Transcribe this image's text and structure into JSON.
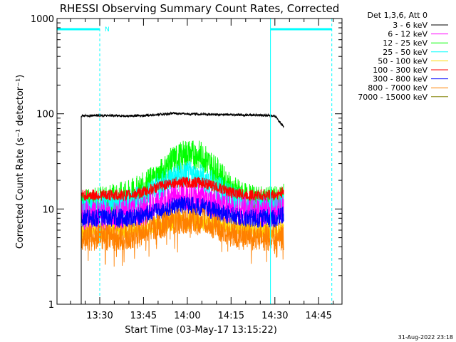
{
  "chart_data": {
    "type": "line",
    "title": "RHESSI Observing Summary Count Rates, Corrected",
    "xlabel": "Start Time (03-May-17 13:15:22)",
    "ylabel": "Corrected Count Rate (s⁻¹ detector⁻¹)",
    "yscale": "log",
    "ylim": [
      1,
      1000
    ],
    "xlim": [
      "13:15:22",
      "14:53:00"
    ],
    "x_ticks": [
      "13:30",
      "13:45",
      "14:00",
      "14:15",
      "14:30",
      "14:45"
    ],
    "y_ticks": [
      "1",
      "10",
      "100",
      "1000"
    ],
    "grid": false,
    "legend_header": "Det 1,3,6, Att 0",
    "legend_position": "top-right",
    "timestamp": "31-Aug-2022 23:18",
    "annotations": {
      "night_label": "N",
      "bars": [
        {
          "kind": "night",
          "start": "13:15:22",
          "end": "13:30:00"
        },
        {
          "kind": "day",
          "start": "14:28:30",
          "end": "14:49:30"
        }
      ],
      "solid_markers": [
        "13:15:22",
        "14:28:30"
      ],
      "dashed_markers": [
        "13:30:00",
        "14:49:30"
      ]
    },
    "data_interval": {
      "start": "13:23:40",
      "end": "14:33:00"
    },
    "series": [
      {
        "name": "3 - 6 keV",
        "color": "#000000",
        "x": [
          "13:23:40",
          "13:30",
          "13:40",
          "13:45",
          "13:50",
          "13:55",
          "14:00",
          "14:05",
          "14:10",
          "14:15",
          "14:20",
          "14:25",
          "14:30",
          "14:33"
        ],
        "values": [
          95,
          96,
          95,
          96,
          98,
          101,
          100,
          99,
          98,
          98,
          97,
          97,
          95,
          73
        ]
      },
      {
        "name": "6 - 12 keV",
        "color": "#ff00ff",
        "x": [
          "13:23:40",
          "13:30",
          "13:40",
          "13:45",
          "13:50",
          "13:55",
          "14:00",
          "14:05",
          "14:10",
          "14:15",
          "14:20",
          "14:25",
          "14:30",
          "14:33"
        ],
        "values": [
          8.5,
          8.5,
          9,
          9.5,
          11,
          13,
          14,
          13,
          11,
          10,
          9.5,
          9.5,
          9.5,
          10
        ]
      },
      {
        "name": "12 - 25 keV",
        "color": "#00ff00",
        "x": [
          "13:23:40",
          "13:30",
          "13:40",
          "13:45",
          "13:50",
          "13:55",
          "14:00",
          "14:05",
          "14:10",
          "14:15",
          "14:20",
          "14:25",
          "14:30",
          "14:33"
        ],
        "values": [
          11,
          12,
          14,
          17,
          22,
          32,
          38,
          36,
          25,
          16,
          13,
          12,
          12,
          13
        ]
      },
      {
        "name": "25 - 50 keV",
        "color": "#00ffff",
        "x": [
          "13:23:40",
          "13:30",
          "13:40",
          "13:45",
          "13:50",
          "13:55",
          "14:00",
          "14:05",
          "14:10",
          "14:15",
          "14:20",
          "14:25",
          "14:30",
          "14:33"
        ],
        "values": [
          10,
          10.5,
          11.5,
          13,
          17,
          21,
          23,
          21,
          17,
          13,
          11,
          10.5,
          10.5,
          11
        ]
      },
      {
        "name": "50 - 100 keV",
        "color": "#ffd700",
        "x": [
          "13:23:40",
          "13:30",
          "13:40",
          "13:45",
          "13:50",
          "13:55",
          "14:00",
          "14:05",
          "14:10",
          "14:15",
          "14:20",
          "14:25",
          "14:30",
          "14:33"
        ],
        "values": [
          6,
          6,
          6,
          6.5,
          7,
          7.5,
          7.5,
          7.5,
          7,
          6.5,
          6,
          6,
          6,
          6
        ]
      },
      {
        "name": "100 - 300 keV",
        "color": "#ff0000",
        "x": [
          "13:23:40",
          "13:30",
          "13:40",
          "13:45",
          "13:50",
          "13:55",
          "14:00",
          "14:05",
          "14:10",
          "14:15",
          "14:20",
          "14:25",
          "14:30",
          "14:33"
        ],
        "values": [
          14,
          14,
          14,
          15,
          17,
          19,
          19,
          19,
          17,
          15,
          14,
          14,
          14,
          15
        ]
      },
      {
        "name": "300 - 800 keV",
        "color": "#0000ff",
        "x": [
          "13:23:40",
          "13:30",
          "13:40",
          "13:45",
          "13:50",
          "13:55",
          "14:00",
          "14:05",
          "14:10",
          "14:15",
          "14:20",
          "14:25",
          "14:30",
          "14:33"
        ],
        "values": [
          8,
          8,
          8,
          8.5,
          9.5,
          10.5,
          11,
          10.5,
          9.5,
          8.5,
          8,
          8,
          8,
          8.5
        ]
      },
      {
        "name": "800 - 7000 keV",
        "color": "#ff8000",
        "x": [
          "13:23:40",
          "13:30",
          "13:40",
          "13:45",
          "13:50",
          "13:55",
          "14:00",
          "14:05",
          "14:10",
          "14:15",
          "14:20",
          "14:25",
          "14:30",
          "14:33"
        ],
        "values": [
          5,
          5,
          5,
          5.5,
          6.5,
          7.5,
          7.5,
          7.5,
          6.5,
          5.5,
          5,
          5,
          5,
          5
        ]
      },
      {
        "name": "7000 - 15000 keV",
        "color": "#808000",
        "x": [],
        "values": []
      }
    ]
  }
}
